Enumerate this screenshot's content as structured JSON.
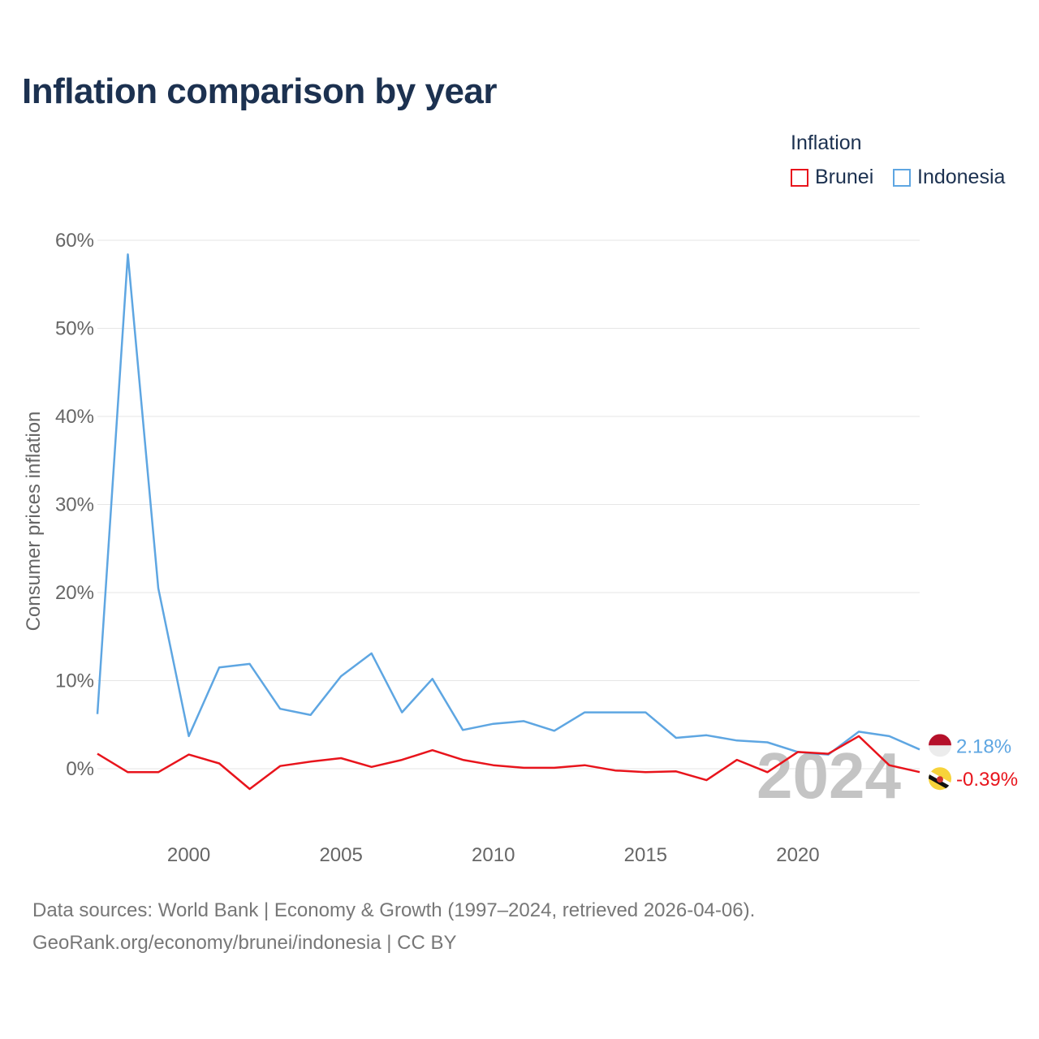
{
  "title": "Inflation comparison by year",
  "legend": {
    "title": "Inflation",
    "items": [
      {
        "label": "Brunei",
        "color": "#e8141c"
      },
      {
        "label": "Indonesia",
        "color": "#5ea6e2"
      }
    ]
  },
  "footer": {
    "line1": "Data sources: World Bank | Economy & Growth (1997–2024, retrieved 2026-04-06).",
    "line2": "GeoRank.org/economy/brunei/indonesia | CC BY"
  },
  "year_watermark": "2024",
  "chart_data": {
    "type": "line",
    "ylabel": "Consumer prices inflation",
    "xlabel": "",
    "x": [
      1997,
      1998,
      1999,
      2000,
      2001,
      2002,
      2003,
      2004,
      2005,
      2006,
      2007,
      2008,
      2009,
      2010,
      2011,
      2012,
      2013,
      2014,
      2015,
      2016,
      2017,
      2018,
      2019,
      2020,
      2021,
      2022,
      2023,
      2024
    ],
    "xlim": [
      1997,
      2024
    ],
    "ylim": [
      -6,
      60
    ],
    "x_ticks": [
      2000,
      2005,
      2010,
      2015,
      2020
    ],
    "y_ticks": [
      0,
      10,
      20,
      30,
      40,
      50,
      60
    ],
    "y_tick_labels": [
      "0%",
      "10%",
      "20%",
      "30%",
      "40%",
      "50%",
      "60%"
    ],
    "grid": true,
    "series": [
      {
        "name": "Indonesia",
        "color": "#5ea6e2",
        "values": [
          6.2,
          58.4,
          20.5,
          3.7,
          11.5,
          11.9,
          6.8,
          6.1,
          10.5,
          13.1,
          6.4,
          10.2,
          4.4,
          5.1,
          5.4,
          4.3,
          6.4,
          6.4,
          6.4,
          3.5,
          3.8,
          3.2,
          3.0,
          1.9,
          1.6,
          4.2,
          3.7,
          2.18
        ],
        "end_label": "2.18%"
      },
      {
        "name": "Brunei",
        "color": "#e8141c",
        "values": [
          1.7,
          -0.4,
          -0.4,
          1.6,
          0.6,
          -2.3,
          0.3,
          0.8,
          1.2,
          0.2,
          1.0,
          2.1,
          1.0,
          0.4,
          0.1,
          0.1,
          0.4,
          -0.2,
          -0.4,
          -0.3,
          -1.3,
          1.0,
          -0.4,
          1.9,
          1.7,
          3.7,
          0.4,
          -0.39
        ],
        "end_label": "-0.39%"
      }
    ]
  }
}
